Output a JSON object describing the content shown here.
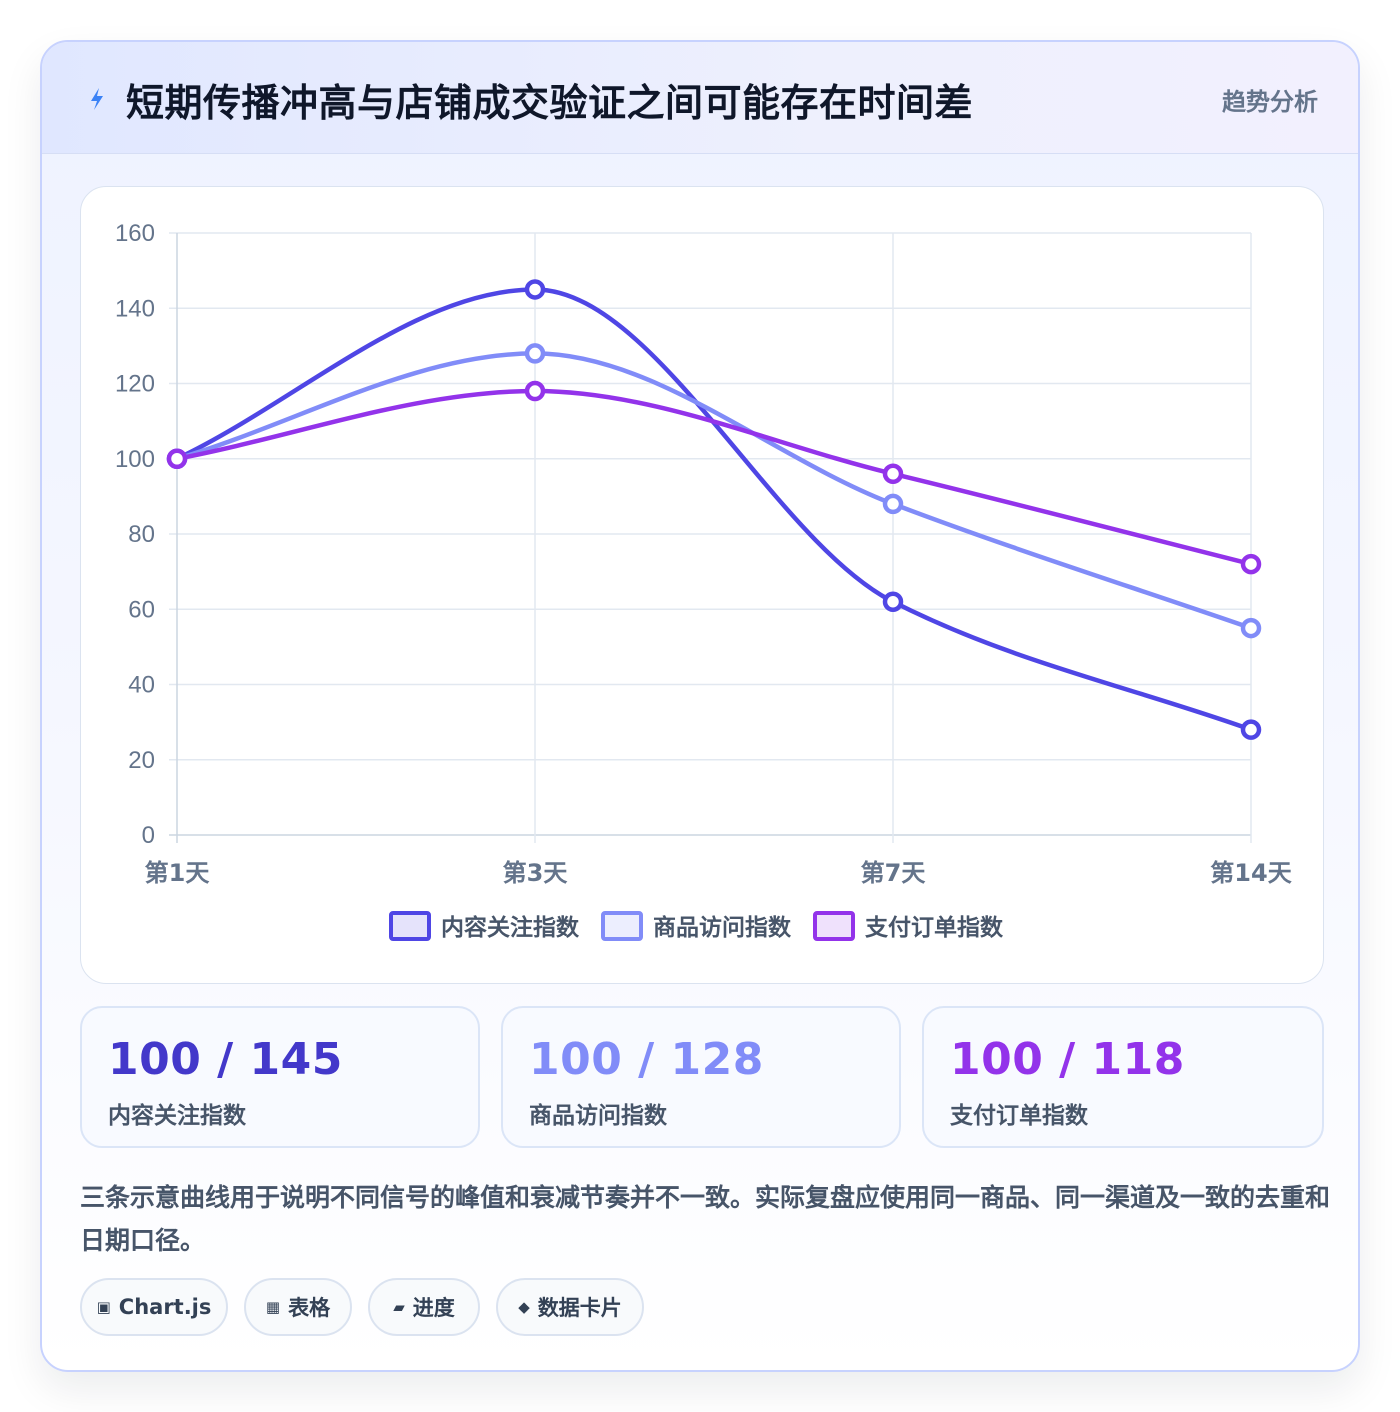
{
  "header": {
    "title": "短期传播冲高与店铺成交验证之间可能存在时间差",
    "tag": "趋势分析",
    "icon": "bolt-icon"
  },
  "chart_data": {
    "type": "line",
    "title": "",
    "xlabel": "",
    "ylabel": "",
    "categories": [
      "第1天",
      "第3天",
      "第7天",
      "第14天"
    ],
    "ylim": [
      0,
      160
    ],
    "yticks": [
      0,
      20,
      40,
      60,
      80,
      100,
      120,
      140,
      160
    ],
    "grid": true,
    "legend_position": "bottom",
    "series": [
      {
        "name": "内容关注指数",
        "values": [
          100,
          145,
          62,
          28
        ],
        "color": "#4f46e5"
      },
      {
        "name": "商品访问指数",
        "values": [
          100,
          128,
          88,
          55
        ],
        "color": "#818cf8"
      },
      {
        "name": "支付订单指数",
        "values": [
          100,
          118,
          96,
          72
        ],
        "color": "#9333ea"
      }
    ]
  },
  "stats": [
    {
      "value": "100 / 145",
      "label": "内容关注指数",
      "color": "#4338ca"
    },
    {
      "value": "100 / 128",
      "label": "商品访问指数",
      "color": "#818cf8"
    },
    {
      "value": "100 / 118",
      "label": "支付订单指数",
      "color": "#9333ea"
    }
  ],
  "note": "三条示意曲线用于说明不同信号的峰值和衰减节奏并不一致。实际复盘应使用同一商品、同一渠道及一致的去重和日期口径。",
  "chips": [
    {
      "icon": "▣",
      "label": "Chart.js"
    },
    {
      "icon": "▦",
      "label": "表格"
    },
    {
      "icon": "▰",
      "label": "进度"
    },
    {
      "icon": "◆",
      "label": "数据卡片"
    }
  ]
}
